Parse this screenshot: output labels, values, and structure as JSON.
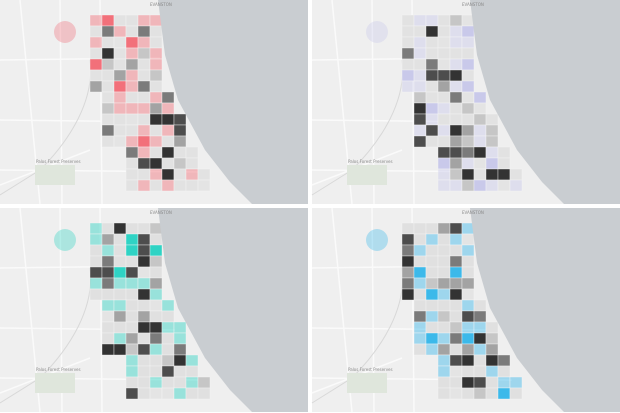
{
  "panels": [
    {
      "color": "#f2707a",
      "labels": [
        "EVANSTON",
        "Palos Forest Preserves"
      ]
    },
    {
      "color": "#c9c9ea",
      "labels": [
        "EVANSTON",
        "Palos Forest Preserves"
      ]
    },
    {
      "color": "#2fd3c4",
      "labels": [
        "EVANSTON",
        "Palos Forest Preserves"
      ]
    },
    {
      "color": "#3cb9ea",
      "labels": [
        "EVANSTON",
        "Palos Forest Preserves"
      ]
    }
  ]
}
